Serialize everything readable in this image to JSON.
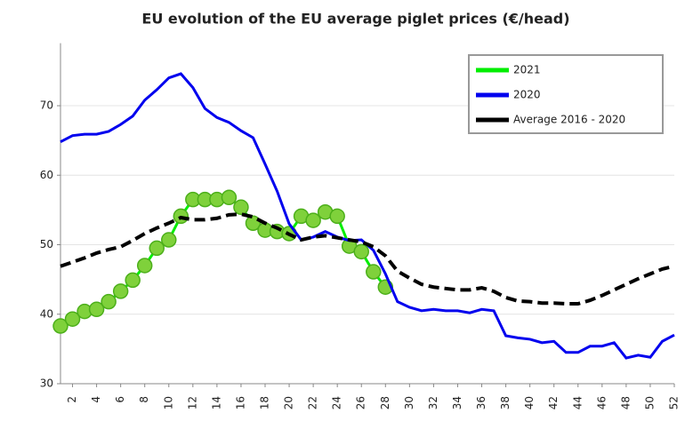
{
  "chart_data": {
    "type": "line",
    "title": "EU evolution of the EU average piglet prices (€/head)",
    "x": [
      1,
      2,
      3,
      4,
      5,
      6,
      7,
      8,
      9,
      10,
      11,
      12,
      13,
      14,
      15,
      16,
      17,
      18,
      19,
      20,
      21,
      22,
      23,
      24,
      25,
      26,
      27,
      28,
      29,
      30,
      31,
      32,
      33,
      34,
      35,
      36,
      37,
      38,
      39,
      40,
      41,
      42,
      43,
      44,
      45,
      46,
      47,
      48,
      49,
      50,
      51,
      52
    ],
    "xlim": [
      1,
      52
    ],
    "xticks": [
      2,
      4,
      6,
      8,
      10,
      12,
      14,
      16,
      18,
      20,
      22,
      24,
      26,
      28,
      30,
      32,
      34,
      36,
      38,
      40,
      42,
      44,
      46,
      48,
      50,
      52
    ],
    "ylim": [
      30,
      79
    ],
    "yticks": [
      30,
      40,
      50,
      60,
      70
    ],
    "grid": true,
    "legend": "top-right",
    "series": [
      {
        "name": "2021",
        "color": "#00ee00",
        "markers": true,
        "values": [
          38.3,
          39.3,
          40.4,
          40.7,
          41.8,
          43.3,
          44.9,
          47.0,
          49.5,
          50.7,
          54.1,
          56.5,
          56.5,
          56.5,
          56.8,
          55.4,
          53.1,
          52.1,
          51.9,
          51.6,
          54.1,
          53.5,
          54.7,
          54.1,
          49.8,
          49.0,
          46.1,
          43.9,
          null,
          null,
          null,
          null,
          null,
          null,
          null,
          null,
          null,
          null,
          null,
          null,
          null,
          null,
          null,
          null,
          null,
          null,
          null,
          null,
          null,
          null,
          null,
          null
        ]
      },
      {
        "name": "2020",
        "color": "#0000ee",
        "values": [
          64.8,
          65.7,
          65.9,
          65.9,
          66.3,
          67.3,
          68.5,
          70.8,
          72.3,
          74.0,
          74.6,
          72.6,
          69.6,
          68.3,
          67.6,
          66.4,
          65.4,
          61.6,
          57.7,
          53.0,
          50.7,
          51.1,
          51.9,
          51.1,
          50.6,
          50.7,
          49.2,
          45.8,
          41.8,
          41.0,
          40.5,
          40.7,
          40.5,
          40.5,
          40.2,
          40.7,
          40.5,
          36.9,
          36.6,
          36.4,
          35.9,
          36.1,
          34.5,
          34.5,
          35.4,
          35.4,
          35.9,
          33.7,
          34.1,
          33.8,
          36.1,
          37.0
        ]
      },
      {
        "name": "Average 2016 - 2020",
        "color": "#000000",
        "dashed": true,
        "values": [
          46.9,
          47.5,
          48.1,
          48.8,
          49.3,
          49.7,
          50.6,
          51.6,
          52.4,
          53.1,
          53.9,
          53.6,
          53.6,
          53.8,
          54.3,
          54.4,
          54.0,
          53.1,
          52.4,
          51.5,
          50.7,
          51.1,
          51.3,
          51.0,
          50.7,
          50.4,
          49.7,
          48.4,
          46.2,
          45.2,
          44.3,
          43.9,
          43.7,
          43.5,
          43.5,
          43.8,
          43.3,
          42.4,
          41.9,
          41.8,
          41.6,
          41.6,
          41.5,
          41.5,
          42.0,
          42.7,
          43.5,
          44.3,
          45.1,
          45.8,
          46.5,
          46.9
        ]
      }
    ]
  }
}
